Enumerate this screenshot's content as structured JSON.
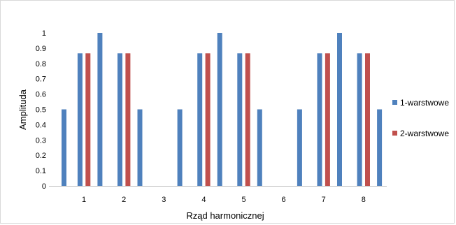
{
  "chart_data": {
    "type": "bar",
    "xlabel": "Rząd harmonicznej",
    "ylabel": "Amplituda",
    "ylim": [
      0,
      1
    ],
    "y_ticks": [
      "0",
      "0.1",
      "0.2",
      "0.3",
      "0.4",
      "0.5",
      "0.6",
      "0.7",
      "0.8",
      "0.9",
      "1"
    ],
    "x_ticks": [
      "1",
      "2",
      "3",
      "4",
      "5",
      "6",
      "7",
      "8"
    ],
    "grid": false,
    "legend_position": "right",
    "series": [
      {
        "name": "1-warstwowe",
        "color": "#4f81bd",
        "points": [
          {
            "x": 0.5,
            "y": 0.5
          },
          {
            "x": 0.9,
            "y": 0.866
          },
          {
            "x": 1.4,
            "y": 1.0
          },
          {
            "x": 1.9,
            "y": 0.866
          },
          {
            "x": 2.4,
            "y": 0.5
          },
          {
            "x": 3.4,
            "y": 0.5
          },
          {
            "x": 3.9,
            "y": 0.866
          },
          {
            "x": 4.4,
            "y": 1.0
          },
          {
            "x": 4.9,
            "y": 0.866
          },
          {
            "x": 5.4,
            "y": 0.5
          },
          {
            "x": 6.4,
            "y": 0.5
          },
          {
            "x": 6.9,
            "y": 0.866
          },
          {
            "x": 7.4,
            "y": 1.0
          },
          {
            "x": 7.9,
            "y": 0.866
          },
          {
            "x": 8.4,
            "y": 0.5
          }
        ]
      },
      {
        "name": "2-warstwowe",
        "color": "#c0504d",
        "points": [
          {
            "x": 1.1,
            "y": 0.866
          },
          {
            "x": 2.1,
            "y": 0.866
          },
          {
            "x": 4.1,
            "y": 0.866
          },
          {
            "x": 5.1,
            "y": 0.866
          },
          {
            "x": 7.1,
            "y": 0.866
          },
          {
            "x": 8.1,
            "y": 0.866
          }
        ]
      }
    ]
  }
}
